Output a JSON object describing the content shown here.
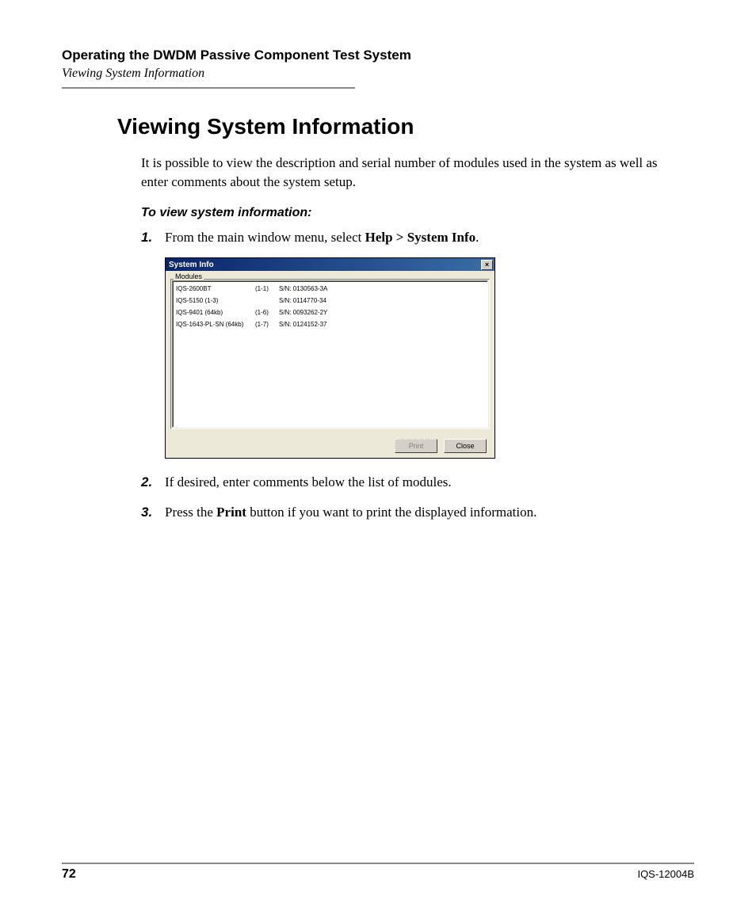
{
  "header": {
    "chapter_title": "Operating the DWDM Passive Component Test System",
    "page_subtitle": "Viewing System Information"
  },
  "section_title": "Viewing System Information",
  "intro_text": "It is possible to view the description and serial number of modules used in the system as well as enter comments about the system setup.",
  "procedure_title": "To view system information:",
  "steps": [
    {
      "num": "1.",
      "before": "From the main window menu, select ",
      "bold": "Help > System Info",
      "after": "."
    },
    {
      "num": "2.",
      "before": "If desired, enter comments below the list of modules.",
      "bold": "",
      "after": ""
    },
    {
      "num": "3.",
      "before": "Press the ",
      "bold": "Print",
      "after": " button if you want to print the displayed information."
    }
  ],
  "dialog": {
    "title": "System Info",
    "group_label": "Modules",
    "modules": [
      {
        "name": "IQS-2600BT",
        "slot": "(1-1)",
        "sn": "S/N: 0130563-3A"
      },
      {
        "name": "IQS-5150 (1-3)",
        "slot": "",
        "sn": "S/N: 0114770-34"
      },
      {
        "name": "IQS-9401 (64kb)",
        "slot": "(1-6)",
        "sn": "S/N: 0093262-2Y"
      },
      {
        "name": "IQS-1643-PL-SN (64kb)",
        "slot": "(1-7)",
        "sn": "S/N: 0124152-37"
      }
    ],
    "buttons": {
      "print": "Print",
      "close": "Close"
    },
    "colors": {
      "titlebar_left": "#0a246a",
      "titlebar_right": "#3a6ea5",
      "face": "#ece9d8",
      "btn_face": "#d4d0c8"
    }
  },
  "footer": {
    "page_number": "72",
    "doc_id": "IQS-12004B"
  }
}
